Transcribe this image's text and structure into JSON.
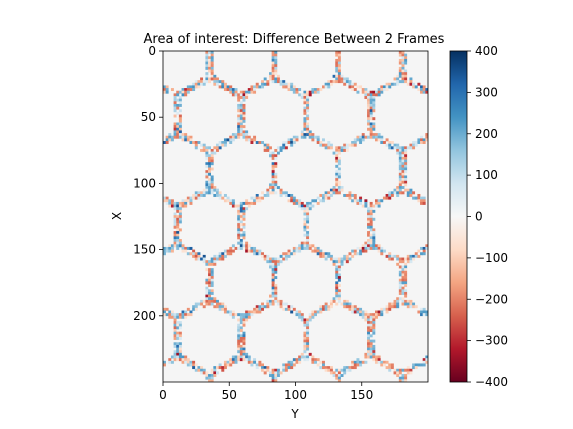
{
  "chart_data": {
    "type": "heatmap",
    "title": "Area of interest: Difference Between 2 Frames",
    "xlabel": "Y",
    "ylabel": "X",
    "xlim": [
      0,
      200
    ],
    "ylim": [
      250,
      0
    ],
    "x_ticks": [
      0,
      50,
      100,
      150
    ],
    "y_ticks": [
      0,
      50,
      100,
      150,
      200
    ],
    "colormap": "RdBu",
    "colorbar": {
      "range": [
        -400,
        400
      ],
      "ticks": [
        400,
        300,
        200,
        100,
        0,
        -100,
        -200,
        -300,
        -400
      ]
    },
    "colors": {
      "background": "#f5f5f5",
      "max": "#053061",
      "mid": "#f7f7f7",
      "min": "#67001f"
    },
    "pattern": "hexagonal cell boundaries with mixed positive and negative differences; cell interiors near 0"
  }
}
